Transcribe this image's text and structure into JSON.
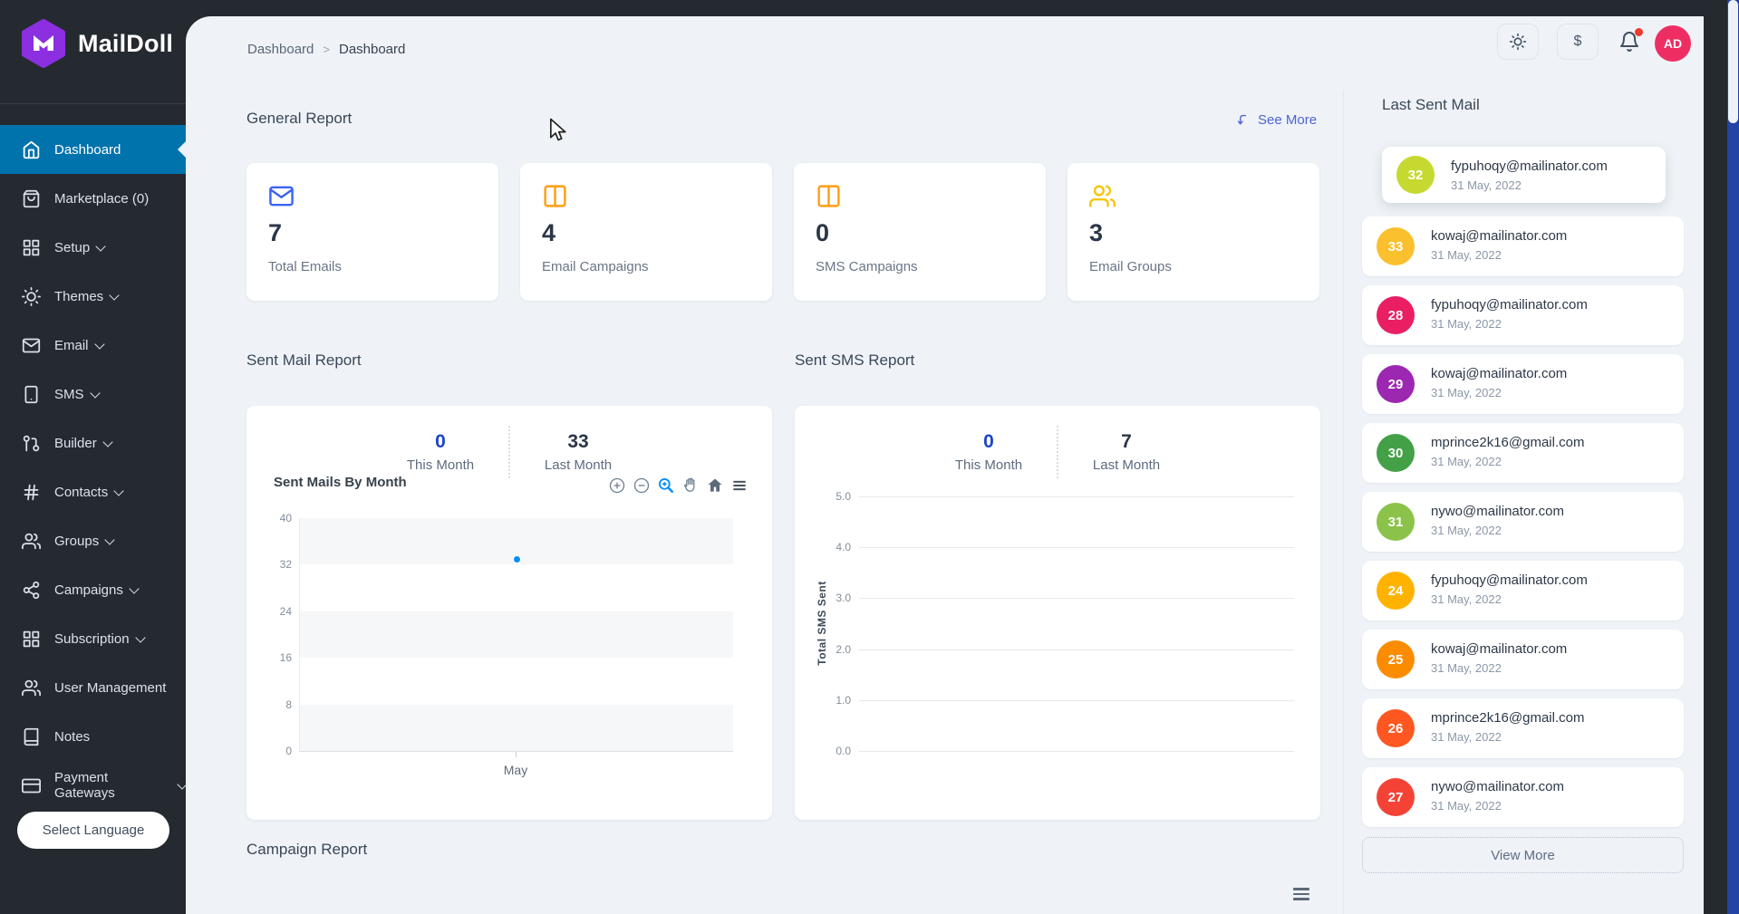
{
  "brand": {
    "name": "MailDoll"
  },
  "sidebar": {
    "items": [
      {
        "id": "dashboard",
        "label": "Dashboard",
        "icon": "home",
        "active": true,
        "chevron": false
      },
      {
        "id": "marketplace",
        "label": "Marketplace (0)",
        "icon": "shopping-bag",
        "chevron": false
      },
      {
        "id": "setup",
        "label": "Setup",
        "icon": "grid",
        "chevron": true
      },
      {
        "id": "themes",
        "label": "Themes",
        "icon": "sun",
        "chevron": true
      },
      {
        "id": "email",
        "label": "Email",
        "icon": "mail",
        "chevron": true
      },
      {
        "id": "sms",
        "label": "SMS",
        "icon": "smartphone",
        "chevron": true
      },
      {
        "id": "builder",
        "label": "Builder",
        "icon": "git-pull-request",
        "chevron": true
      },
      {
        "id": "contacts",
        "label": "Contacts",
        "icon": "hash",
        "chevron": true
      },
      {
        "id": "groups",
        "label": "Groups",
        "icon": "users",
        "chevron": true
      },
      {
        "id": "campaigns",
        "label": "Campaigns",
        "icon": "share-2",
        "chevron": true
      },
      {
        "id": "subscription",
        "label": "Subscription",
        "icon": "grid",
        "chevron": true
      },
      {
        "id": "user-management",
        "label": "User Management",
        "icon": "users",
        "chevron": false
      },
      {
        "id": "notes",
        "label": "Notes",
        "icon": "book",
        "chevron": false
      },
      {
        "id": "payment-gateways",
        "label": "Payment Gateways",
        "icon": "credit-card",
        "chevron": true
      }
    ],
    "language_label": "Select Language",
    "active_color": "#0073ad"
  },
  "header": {
    "breadcrumb": [
      "Dashboard",
      "Dashboard"
    ],
    "breadcrumb_separator": ">",
    "currency_symbol": "$",
    "avatar_initials": "AD",
    "avatar_color": "#ee2e63",
    "notification_dot_color": "#f2392e"
  },
  "general_report": {
    "title": "General Report",
    "see_more": "See More",
    "cards": [
      {
        "id": "total-emails",
        "value": "7",
        "label": "Total Emails",
        "icon": "mail",
        "color": "#3b64f4"
      },
      {
        "id": "email-campaigns",
        "value": "4",
        "label": "Email Campaigns",
        "icon": "columns",
        "color": "#ff9d13"
      },
      {
        "id": "sms-campaigns",
        "value": "0",
        "label": "SMS Campaigns",
        "icon": "columns",
        "color": "#ff9d13"
      },
      {
        "id": "email-groups",
        "value": "3",
        "label": "Email Groups",
        "icon": "users",
        "color": "#f6c510"
      }
    ]
  },
  "sent_mail_report": {
    "title": "Sent Mail Report",
    "this_month_value": "0",
    "this_month_label": "This Month",
    "last_month_value": "33",
    "last_month_label": "Last Month",
    "chart_title": "Sent Mails By Month"
  },
  "sent_sms_report": {
    "title": "Sent SMS Report",
    "this_month_value": "0",
    "this_month_label": "This Month",
    "last_month_value": "7",
    "last_month_label": "Last Month"
  },
  "campaign_report": {
    "title": "Campaign Report"
  },
  "last_sent_mail": {
    "title": "Last Sent Mail",
    "view_more": "View More",
    "items": [
      {
        "count": "32",
        "email": "fypuhoqy@mailinator.com",
        "date": "31 May, 2022",
        "color": "#c5d930"
      },
      {
        "count": "33",
        "email": "kowaj@mailinator.com",
        "date": "31 May, 2022",
        "color": "#fbc02d"
      },
      {
        "count": "28",
        "email": "fypuhoqy@mailinator.com",
        "date": "31 May, 2022",
        "color": "#e91e63"
      },
      {
        "count": "29",
        "email": "kowaj@mailinator.com",
        "date": "31 May, 2022",
        "color": "#9c27b0"
      },
      {
        "count": "30",
        "email": "mprince2k16@gmail.com",
        "date": "31 May, 2022",
        "color": "#43a047"
      },
      {
        "count": "31",
        "email": "nywo@mailinator.com",
        "date": "31 May, 2022",
        "color": "#8bc34a"
      },
      {
        "count": "24",
        "email": "fypuhoqy@mailinator.com",
        "date": "31 May, 2022",
        "color": "#ffb300"
      },
      {
        "count": "25",
        "email": "kowaj@mailinator.com",
        "date": "31 May, 2022",
        "color": "#fb8c00"
      },
      {
        "count": "26",
        "email": "mprince2k16@gmail.com",
        "date": "31 May, 2022",
        "color": "#ff5722"
      },
      {
        "count": "27",
        "email": "nywo@mailinator.com",
        "date": "31 May, 2022",
        "color": "#f44336"
      }
    ]
  },
  "chart_data": [
    {
      "type": "scatter",
      "title": "Sent Mails By Month",
      "x": [
        "May"
      ],
      "series": [
        {
          "name": "Sent Mails",
          "values": [
            33
          ]
        }
      ],
      "ylim": [
        0,
        40
      ],
      "yticks": [
        "40",
        "32",
        "24",
        "16",
        "8",
        "0"
      ],
      "grid": "alternating-bands",
      "legend": "none",
      "point_color": "#008ffb",
      "stats": {
        "this_month": 0,
        "last_month": 33
      }
    },
    {
      "type": "line",
      "title": "Sent SMS Report",
      "ylabel": "Total SMS Sent",
      "x": [],
      "series": [],
      "ylim": [
        0,
        5
      ],
      "yticks": [
        "5.0",
        "4.0",
        "3.0",
        "2.0",
        "1.0",
        "0.0"
      ],
      "grid": "horizontal-lines",
      "legend": "none",
      "stats": {
        "this_month": 0,
        "last_month": 7
      }
    }
  ]
}
